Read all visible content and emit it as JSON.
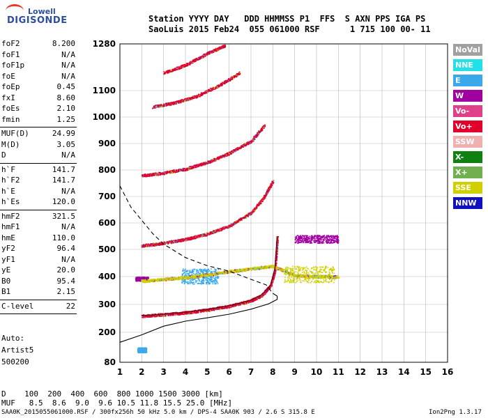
{
  "logo": {
    "line1": "Lowell",
    "line2": "DIGISONDE"
  },
  "header": {
    "row1": "Station YYYY DAY   DDD HHMMSS P1  FFS  S AXN PPS IGA PS",
    "row2": "SaoLuis 2015 Feb24  055 061000 RSF      1 715 100 00- 11"
  },
  "params": {
    "group1": [
      {
        "name": "foF2",
        "value": "8.200"
      },
      {
        "name": "foF1",
        "value": "N/A"
      },
      {
        "name": "foF1p",
        "value": "N/A"
      },
      {
        "name": "foE",
        "value": "N/A"
      },
      {
        "name": "foEp",
        "value": "0.45"
      },
      {
        "name": "fxI",
        "value": "8.60"
      },
      {
        "name": "foEs",
        "value": "2.10"
      },
      {
        "name": "fmin",
        "value": "1.25"
      }
    ],
    "group2": [
      {
        "name": "MUF(D)",
        "value": "24.99"
      },
      {
        "name": "M(D)",
        "value": "3.05"
      },
      {
        "name": "D",
        "value": "N/A"
      }
    ],
    "group3": [
      {
        "name": "h`F",
        "value": "141.7"
      },
      {
        "name": "h`F2",
        "value": "141.7"
      },
      {
        "name": "h`E",
        "value": "N/A"
      },
      {
        "name": "h`Es",
        "value": "120.0"
      }
    ],
    "group4": [
      {
        "name": "hmF2",
        "value": "321.5"
      },
      {
        "name": "hmF1",
        "value": "N/A"
      },
      {
        "name": "hmE",
        "value": "110.0"
      },
      {
        "name": "yF2",
        "value": "96.4"
      },
      {
        "name": "yF1",
        "value": "N/A"
      },
      {
        "name": "yE",
        "value": "20.0"
      },
      {
        "name": "B0",
        "value": "95.4"
      },
      {
        "name": "B1",
        "value": "2.15"
      }
    ],
    "group5": [
      {
        "name": "C-level",
        "value": "22"
      }
    ]
  },
  "auto": {
    "line1": "Auto:",
    "line2": "Artist5",
    "line3": "500200"
  },
  "legend": [
    {
      "label": "NoVal",
      "color": "#a0a0a0"
    },
    {
      "label": "NNE",
      "color": "#22e0e8"
    },
    {
      "label": "E",
      "color": "#3ba8ec"
    },
    {
      "label": "W",
      "color": "#a000a0"
    },
    {
      "label": "Vo-",
      "color": "#e0408a"
    },
    {
      "label": "Vo+",
      "color": "#e0002a"
    },
    {
      "label": "SSW",
      "color": "#f0b0b0"
    },
    {
      "label": "X-",
      "color": "#108010"
    },
    {
      "label": "X+",
      "color": "#70b050"
    },
    {
      "label": "SSE",
      "color": "#d0d000"
    },
    {
      "label": "NNW",
      "color": "#1010c0"
    }
  ],
  "footer": {
    "d_row": "D    100  200  400  600  800 1000 1500 3000 [km]",
    "muf_row": "MUF   8.5  8.6  9.0  9.6 10.5 11.8 15.5 25.0 [MHz]",
    "file_row": "SAA0K_2015055061000.RSF / 300fx256h 50 kHz 5.0 km / DPS-4 SAA0K 903 / 2.6 S 315.8 E",
    "version": "Ion2Png 1.3.17"
  },
  "chart_data": {
    "type": "scatter",
    "title": "",
    "xlabel": "",
    "ylabel": "",
    "xlim": [
      1,
      16
    ],
    "ylim": [
      80,
      1280
    ],
    "xticks": [
      1,
      2,
      3,
      4,
      5,
      6,
      7,
      8,
      9,
      10,
      11,
      12,
      13,
      14,
      15,
      16
    ],
    "yticks": [
      80,
      200,
      300,
      400,
      500,
      600,
      700,
      800,
      900,
      1000,
      1100,
      1280
    ],
    "grid": true,
    "traces": [
      {
        "name": "F trace (1st hop)",
        "color": "#e0002a",
        "x": [
          2.0,
          3.0,
          4.0,
          5.0,
          6.0,
          7.0,
          7.5,
          7.9,
          8.1,
          8.2
        ],
        "y": [
          260,
          265,
          272,
          282,
          295,
          315,
          335,
          370,
          430,
          550
        ]
      },
      {
        "name": "F trace (2nd hop)",
        "color": "#e0002a",
        "x": [
          2.0,
          3.0,
          4.0,
          5.0,
          6.0,
          7.0,
          7.6,
          8.0
        ],
        "y": [
          515,
          525,
          540,
          560,
          590,
          640,
          700,
          760
        ]
      },
      {
        "name": "F trace (3rd hop)",
        "color": "#e0002a",
        "x": [
          2.0,
          3.0,
          4.0,
          5.0,
          6.0,
          7.0,
          7.6
        ],
        "y": [
          780,
          790,
          805,
          830,
          865,
          910,
          970
        ]
      },
      {
        "name": "F trace (4th hop)",
        "color": "#e0002a",
        "x": [
          2.5,
          3.5,
          4.5,
          5.5,
          6.5
        ],
        "y": [
          1040,
          1055,
          1080,
          1120,
          1170
        ]
      },
      {
        "name": "F trace (5th hop)",
        "color": "#e0002a",
        "x": [
          3.0,
          4.0,
          5.0,
          5.8
        ],
        "y": [
          1170,
          1200,
          1245,
          1275
        ]
      },
      {
        "name": "Es layer",
        "color": "#d0d000",
        "x": [
          2.0,
          3.0,
          4.0,
          5.0,
          6.0,
          7.0,
          8.0,
          9.0,
          10.0,
          11.0
        ],
        "y": [
          385,
          392,
          398,
          408,
          420,
          430,
          440,
          405,
          402,
          400
        ]
      }
    ],
    "profile_solid": {
      "x": [
        1.0,
        2.0,
        3.0,
        4.0,
        5.0,
        6.0,
        7.0,
        7.8,
        8.2,
        8.2,
        8.0
      ],
      "y": [
        160,
        190,
        222,
        240,
        252,
        265,
        283,
        302,
        318,
        330,
        340
      ]
    },
    "profile_dashed": {
      "x": [
        1.0,
        1.5,
        2.0,
        2.5,
        3.0,
        4.0,
        5.0,
        6.0,
        7.0,
        7.7,
        8.0
      ],
      "y": [
        740,
        660,
        610,
        560,
        520,
        470,
        440,
        420,
        390,
        370,
        340
      ]
    },
    "blobs": [
      {
        "color": "#3ba8ec",
        "x": [
          3.8,
          5.5
        ],
        "y": [
          375,
          430
        ]
      },
      {
        "color": "#d0d000",
        "x": [
          8.5,
          10.8
        ],
        "y": [
          380,
          440
        ]
      },
      {
        "color": "#a000a0",
        "x": [
          9.0,
          11.0
        ],
        "y": [
          525,
          555
        ]
      },
      {
        "color": "#a000a0",
        "x": [
          1.7,
          2.3
        ],
        "y": [
          385,
          400
        ]
      },
      {
        "color": "#3ba8ec",
        "x": [
          1.8,
          2.2
        ],
        "y": [
          120,
          140
        ]
      }
    ]
  }
}
